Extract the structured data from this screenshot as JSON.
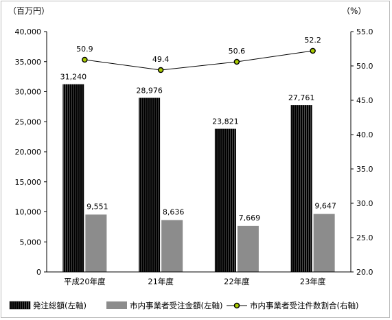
{
  "chart_data": {
    "type": "bar",
    "categories": [
      "平成20年度",
      "21年度",
      "22年度",
      "23年度"
    ],
    "series": [
      {
        "name": "発注総額(左軸)",
        "axis": "left",
        "values": [
          31240,
          28976,
          23821,
          27761
        ],
        "labels": [
          "31,240",
          "28,976",
          "23,821",
          "27,761"
        ],
        "color": "#1a1a1a",
        "pattern": "vertical-stripes"
      },
      {
        "name": "市内事業者受注金額(左軸)",
        "axis": "left",
        "values": [
          9551,
          8636,
          7669,
          9647
        ],
        "labels": [
          "9,551",
          "8,636",
          "7,669",
          "9,647"
        ],
        "color": "#8c8c8c"
      },
      {
        "name": "市内事業者受注件数割合(右軸)",
        "axis": "right",
        "type": "line",
        "values": [
          50.9,
          49.4,
          50.6,
          52.2
        ],
        "labels": [
          "50.9",
          "49.4",
          "50.6",
          "52.2"
        ],
        "line_color": "#000000",
        "marker_color": "#aacc00"
      }
    ],
    "left_axis": {
      "unit": "（百万円）",
      "range": [
        0,
        40000
      ],
      "ticks": [
        0,
        5000,
        10000,
        15000,
        20000,
        25000,
        30000,
        35000,
        40000
      ],
      "tick_labels": [
        "0",
        "5,000",
        "10,000",
        "15,000",
        "20,000",
        "25,000",
        "30,000",
        "35,000",
        "40,000"
      ]
    },
    "right_axis": {
      "unit": "（%）",
      "range": [
        20,
        55
      ],
      "ticks": [
        20,
        25,
        30,
        35,
        40,
        45,
        50,
        55
      ],
      "tick_labels": [
        "20.0",
        "25.0",
        "30.0",
        "35.0",
        "40.0",
        "45.0",
        "50.0",
        "55.0"
      ]
    },
    "grid": false,
    "legend_position": "bottom"
  }
}
